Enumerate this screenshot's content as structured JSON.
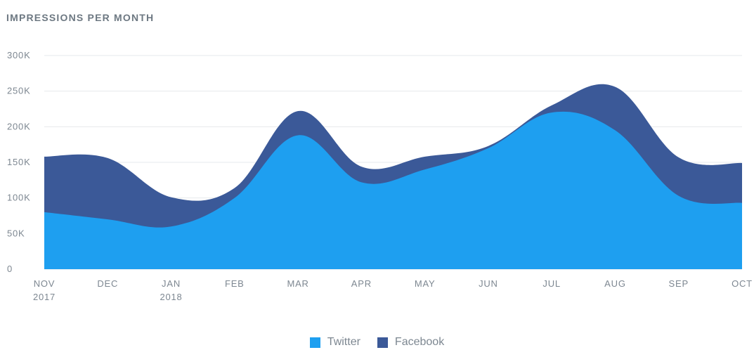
{
  "title": "IMPRESSIONS PER MONTH",
  "chart_data": {
    "type": "area",
    "stacked": true,
    "title": "IMPRESSIONS PER MONTH",
    "categories": [
      [
        "NOV",
        "2017"
      ],
      [
        "DEC"
      ],
      [
        "JAN",
        "2018"
      ],
      [
        "FEB"
      ],
      [
        "MAR"
      ],
      [
        "APR"
      ],
      [
        "MAY"
      ],
      [
        "JUN"
      ],
      [
        "JUL"
      ],
      [
        "AUG"
      ],
      [
        "SEP"
      ],
      [
        "OCT"
      ]
    ],
    "yticks": [
      {
        "value": 0,
        "label": "0"
      },
      {
        "value": 50000,
        "label": "50K"
      },
      {
        "value": 100000,
        "label": "100K"
      },
      {
        "value": 150000,
        "label": "150K"
      },
      {
        "value": 200000,
        "label": "200K"
      },
      {
        "value": 250000,
        "label": "250K"
      },
      {
        "value": 300000,
        "label": "300K"
      }
    ],
    "ylim": [
      0,
      300000
    ],
    "grid": true,
    "legend_position": "bottom-center",
    "series": [
      {
        "name": "Twitter",
        "color": "#1e9ff0",
        "values": [
          80000,
          70000,
          60000,
          100000,
          188000,
          122000,
          140000,
          170000,
          220000,
          195000,
          103000,
          93000
        ]
      },
      {
        "name": "Facebook",
        "color": "#3b5998",
        "values": [
          78000,
          86000,
          41000,
          14000,
          34000,
          22000,
          18000,
          3000,
          10000,
          61000,
          54000,
          56000
        ]
      }
    ]
  }
}
